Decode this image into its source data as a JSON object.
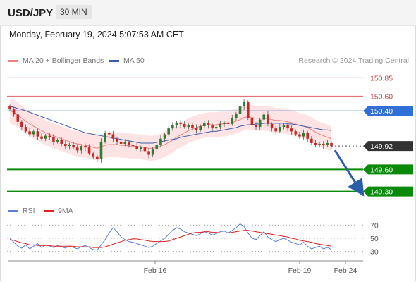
{
  "header": {
    "symbol": "USD/JPY",
    "timeframe": "30 MIN"
  },
  "datetime": "Monday, February 19, 2024 5:07:53 AM CET",
  "legend": {
    "ma20": "MA 20 + Bollinger Bands",
    "ma50": "MA 50",
    "credit": "Research © 2024 Trading Central",
    "rsi": "RSI",
    "ma9": "9MA"
  },
  "colors": {
    "up_candle": "#2e7d32",
    "down_candle": "#c62828",
    "ma20": "#f08080",
    "ma50": "#3b5ea8",
    "bollinger_fill": "#fde3e3",
    "support": "#0a8a0a",
    "resistance": "#e06060",
    "pivot": "#2f6fd6",
    "last_price": "#333333",
    "rsi": "#5b7fd6",
    "rsi_ma": "#e02020",
    "arrow": "#2a5fa8"
  },
  "chart_data": [
    {
      "type": "candlestick",
      "x_axis": {
        "tick_labels": [
          "Feb 16",
          "Feb 19",
          "Feb 24"
        ]
      },
      "y_range": [
        149.2,
        150.95
      ],
      "price_levels": [
        {
          "name": "resistance-2",
          "value": 150.85,
          "label": "150.85",
          "style": "resistance"
        },
        {
          "name": "resistance-1",
          "value": 150.6,
          "label": "150.60",
          "style": "resistance"
        },
        {
          "name": "pivot",
          "value": 150.4,
          "label": "150.40",
          "style": "pivot"
        },
        {
          "name": "last-price",
          "value": 149.92,
          "label": "149.92",
          "style": "last"
        },
        {
          "name": "support-1",
          "value": 149.6,
          "label": "149.60",
          "style": "support"
        },
        {
          "name": "support-2",
          "value": 149.3,
          "label": "149.30",
          "style": "support"
        }
      ],
      "closes": [
        150.42,
        150.35,
        150.25,
        150.18,
        150.12,
        150.08,
        150.12,
        150.05,
        150.02,
        150.06,
        150.04,
        149.98,
        150.0,
        149.95,
        149.92,
        149.94,
        149.9,
        149.86,
        149.92,
        149.9,
        149.82,
        149.78,
        149.74,
        149.98,
        150.1,
        150.08,
        150.02,
        149.98,
        149.95,
        149.97,
        149.94,
        149.92,
        149.88,
        149.9,
        149.85,
        149.8,
        149.88,
        149.94,
        150.02,
        150.08,
        150.16,
        150.2,
        150.24,
        150.22,
        150.18,
        150.2,
        150.17,
        150.14,
        150.19,
        150.23,
        150.2,
        150.16,
        150.18,
        150.22,
        150.24,
        150.22,
        150.3,
        150.36,
        150.46,
        150.52,
        150.3,
        150.2,
        150.18,
        150.28,
        150.35,
        150.22,
        150.16,
        150.12,
        150.18,
        150.2,
        150.16,
        150.12,
        150.08,
        150.05,
        150.1,
        150.02,
        149.96,
        149.94,
        149.95,
        149.93,
        149.96,
        149.92
      ],
      "ma20": [
        150.4,
        150.38,
        150.34,
        150.3,
        150.26,
        150.22,
        150.19,
        150.16,
        150.13,
        150.1,
        150.08,
        150.06,
        150.04,
        150.02,
        150.0,
        149.98,
        149.96,
        149.95,
        149.94,
        149.93,
        149.92,
        149.9,
        149.89,
        149.91,
        149.93,
        149.94,
        149.94,
        149.94,
        149.93,
        149.93,
        149.92,
        149.92,
        149.91,
        149.91,
        149.9,
        149.89,
        149.89,
        149.9,
        149.92,
        149.94,
        149.97,
        150.0,
        150.04,
        150.07,
        150.1,
        150.13,
        150.15,
        150.17,
        150.19,
        150.2,
        150.21,
        150.21,
        150.21,
        150.22,
        150.22,
        150.23,
        150.24,
        150.26,
        150.28,
        150.31,
        150.32,
        150.31,
        150.3,
        150.3,
        150.3,
        150.29,
        150.28,
        150.27,
        150.27,
        150.26,
        150.25,
        150.24,
        150.22,
        150.2,
        150.19,
        150.17,
        150.14,
        150.11,
        150.08,
        150.06,
        150.04,
        150.02
      ],
      "ma50": [
        150.46,
        150.45,
        150.43,
        150.42,
        150.4,
        150.38,
        150.36,
        150.34,
        150.32,
        150.3,
        150.28,
        150.26,
        150.24,
        150.22,
        150.2,
        150.18,
        150.16,
        150.14,
        150.12,
        150.1,
        150.09,
        150.08,
        150.07,
        150.06,
        150.05,
        150.04,
        150.03,
        150.02,
        150.01,
        150.0,
        149.99,
        149.98,
        149.97,
        149.96,
        149.96,
        149.96,
        149.96,
        149.97,
        149.98,
        149.99,
        150.0,
        150.01,
        150.02,
        150.04,
        150.05,
        150.06,
        150.07,
        150.08,
        150.09,
        150.1,
        150.11,
        150.12,
        150.12,
        150.13,
        150.14,
        150.15,
        150.16,
        150.17,
        150.19,
        150.2,
        150.21,
        150.21,
        150.22,
        150.22,
        150.23,
        150.23,
        150.23,
        150.23,
        150.23,
        150.23,
        150.22,
        150.22,
        150.21,
        150.2,
        150.19,
        150.18,
        150.17,
        150.16,
        150.15,
        150.14,
        150.14,
        150.13
      ],
      "bollinger_width": 0.17
    },
    {
      "type": "line",
      "name": "RSI panel",
      "y_range": [
        20,
        80
      ],
      "y_ticks": [
        70,
        50,
        30
      ],
      "rsi": [
        50,
        44,
        38,
        35,
        40,
        34,
        38,
        42,
        36,
        40,
        38,
        36,
        39,
        37,
        35,
        38,
        36,
        34,
        37,
        39,
        36,
        33,
        32,
        40,
        48,
        58,
        66,
        60,
        52,
        48,
        45,
        44,
        42,
        40,
        38,
        36,
        38,
        42,
        46,
        50,
        56,
        62,
        66,
        64,
        60,
        58,
        56,
        54,
        57,
        60,
        58,
        55,
        57,
        60,
        61,
        58,
        62,
        66,
        72,
        68,
        58,
        50,
        48,
        54,
        60,
        52,
        48,
        45,
        48,
        50,
        47,
        44,
        42,
        40,
        44,
        38,
        34,
        36,
        38,
        34,
        36,
        33
      ],
      "ma9": [
        48,
        47,
        45,
        43,
        42,
        40,
        40,
        39,
        39,
        39,
        39,
        38,
        38,
        38,
        38,
        38,
        38,
        37,
        37,
        37,
        37,
        36,
        36,
        36,
        37,
        39,
        41,
        43,
        45,
        47,
        48,
        49,
        49,
        48,
        47,
        46,
        45,
        45,
        45,
        45,
        46,
        48,
        50,
        52,
        54,
        56,
        58,
        59,
        59,
        60,
        60,
        59,
        59,
        58,
        58,
        58,
        59,
        60,
        61,
        62,
        62,
        61,
        60,
        59,
        58,
        57,
        56,
        55,
        54,
        53,
        52,
        50,
        49,
        47,
        46,
        45,
        44,
        42,
        41,
        40,
        39,
        38
      ]
    }
  ]
}
